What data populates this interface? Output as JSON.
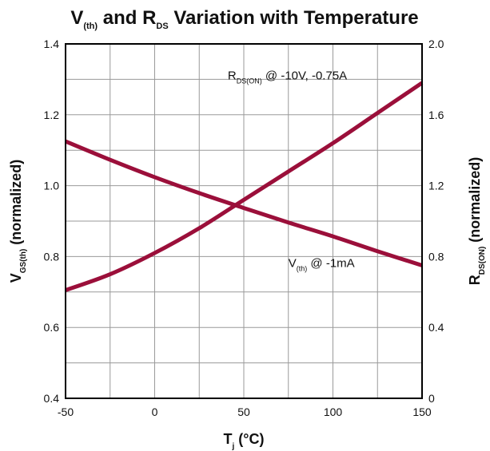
{
  "chart_data": {
    "type": "line",
    "title": {
      "parts": [
        {
          "text": "V",
          "sub": false
        },
        {
          "text": "(th)",
          "sub": true
        },
        {
          "text": " and R",
          "sub": false
        },
        {
          "text": "DS",
          "sub": true
        },
        {
          "text": " Variation with Temperature",
          "sub": false
        }
      ]
    },
    "xlabel": {
      "parts": [
        {
          "text": "T",
          "sub": false
        },
        {
          "text": "j",
          "sub": true
        },
        {
          "text": " (°C)",
          "sub": false
        }
      ]
    },
    "ylabel_left": {
      "parts": [
        {
          "text": "V",
          "sub": false
        },
        {
          "text": "GS(th)",
          "sub": true
        },
        {
          "text": " (normalized)",
          "sub": false
        }
      ]
    },
    "ylabel_right": {
      "parts": [
        {
          "text": "R",
          "sub": false
        },
        {
          "text": "DS(ON)",
          "sub": true
        },
        {
          "text": " (normalized)",
          "sub": false
        }
      ]
    },
    "xlim": [
      -50,
      150
    ],
    "ylim_left": [
      0.4,
      1.4
    ],
    "ylim_right": [
      0,
      2.0
    ],
    "x_ticks": [
      "-50",
      "0",
      "50",
      "100",
      "150"
    ],
    "y_left_ticks": [
      "0.4",
      "0.6",
      "0.8",
      "1.0",
      "1.2",
      "1.4"
    ],
    "y_right_ticks": [
      "0",
      "0.4",
      "0.8",
      "1.2",
      "1.6",
      "2.0"
    ],
    "grid": true,
    "grid_x_step": 25,
    "grid_y_step": 0.1,
    "series_color": "#9b0f3a",
    "series": [
      {
        "id": "vth",
        "axis": "left",
        "label_parts": [
          {
            "text": "V",
            "sub": false
          },
          {
            "text": "(th)",
            "sub": true
          },
          {
            "text": " @ -1mA",
            "sub": false
          }
        ],
        "label_anchor": [
          75,
          0.77
        ],
        "x": [
          -50,
          -25,
          0,
          25,
          50,
          75,
          100,
          125,
          150
        ],
        "values": [
          1.125,
          1.073,
          1.024,
          0.979,
          0.937,
          0.896,
          0.857,
          0.815,
          0.775
        ]
      },
      {
        "id": "rds",
        "axis": "right",
        "label_parts": [
          {
            "text": "R",
            "sub": false
          },
          {
            "text": "DS(ON)",
            "sub": true
          },
          {
            "text": " @ -10V, -0.75A",
            "sub": false
          }
        ],
        "label_anchor": [
          41,
          1.8
        ],
        "x": [
          -50,
          -25,
          0,
          25,
          50,
          75,
          100,
          125,
          150
        ],
        "values": [
          0.61,
          0.7,
          0.82,
          0.96,
          1.12,
          1.28,
          1.44,
          1.61,
          1.78
        ]
      }
    ]
  }
}
